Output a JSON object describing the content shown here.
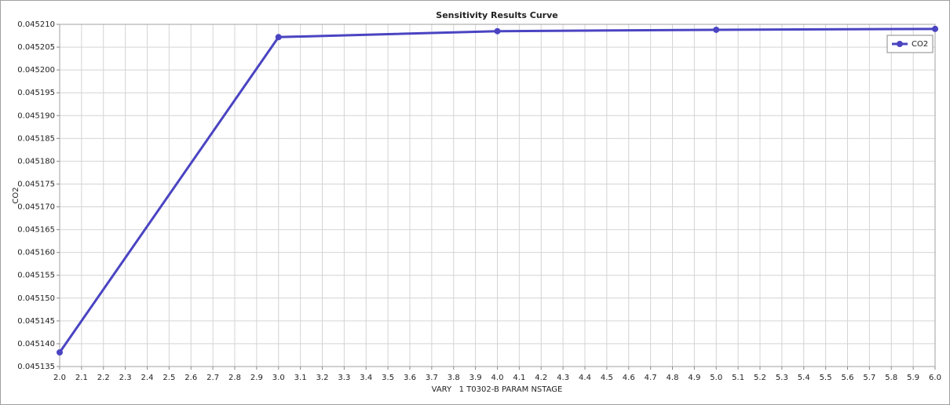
{
  "chart_data": {
    "type": "line",
    "title": "Sensitivity Results Curve",
    "x_label": "VARY   1 T0302-B PARAM NSTAGE",
    "y_label": "CO2",
    "x": [
      2,
      3,
      4,
      5,
      6
    ],
    "series": [
      {
        "name": "CO2",
        "color": "#4a44c2",
        "values": [
          0.0451381,
          0.0452072,
          0.0452085,
          0.0452088,
          0.045209
        ]
      }
    ],
    "xlim": [
      2,
      6
    ],
    "xticks": [
      {
        "value": 2,
        "label": "2.0"
      },
      2.1,
      2.2,
      2.3,
      2.4,
      2.5,
      2.6,
      2.7,
      2.8,
      2.9,
      {
        "value": 3,
        "label": "3.0"
      },
      3.1,
      3.2,
      3.3,
      3.4,
      3.5,
      3.6,
      3.7,
      3.8,
      3.9,
      {
        "value": 4,
        "label": "4.0"
      },
      4.1,
      4.2,
      4.3,
      4.4,
      4.5,
      4.6,
      4.7,
      4.8,
      4.9,
      {
        "value": 5,
        "label": "5.0"
      },
      5.1,
      5.2,
      5.3,
      5.4,
      5.5,
      5.6,
      5.7,
      5.8,
      5.9,
      {
        "value": 6,
        "label": "6.0"
      }
    ],
    "ylim": [
      0.045135,
      0.04521
    ],
    "yticks": [
      0.045135,
      {
        "value": 0.04514,
        "label": "0.045140"
      },
      0.045145,
      {
        "value": 0.04515,
        "label": "0.045150"
      },
      0.045155,
      {
        "value": 0.04516,
        "label": "0.045160"
      },
      0.045165,
      {
        "value": 0.04517,
        "label": "0.045170"
      },
      0.045175,
      {
        "value": 0.04518,
        "label": "0.045180"
      },
      0.045185,
      {
        "value": 0.04519,
        "label": "0.045190"
      },
      0.045195,
      {
        "value": 0.0452,
        "label": "0.045200"
      },
      0.045205,
      {
        "value": 0.04521,
        "label": "0.045210"
      }
    ],
    "grid": true,
    "legend": "upper right"
  }
}
